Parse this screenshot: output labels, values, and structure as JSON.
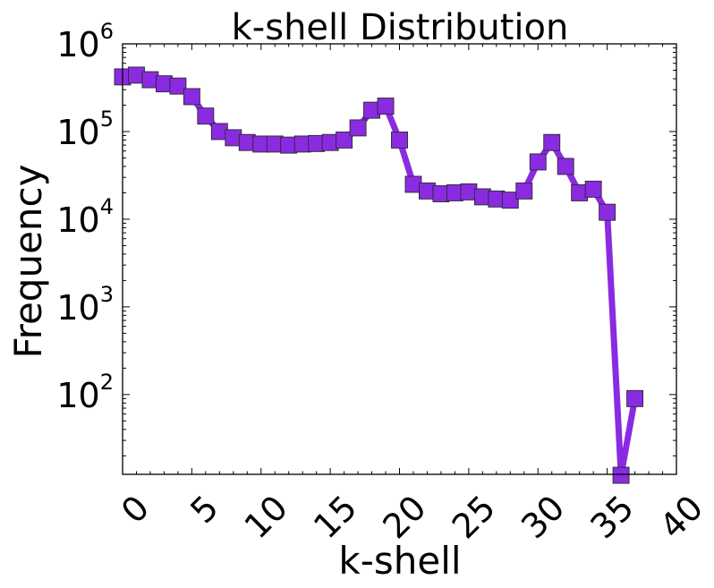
{
  "chart_data": {
    "type": "line",
    "title": "k-shell Distribution",
    "xlabel": "k-shell",
    "ylabel": "Frequency",
    "xlim": [
      0,
      40
    ],
    "ylim_log10": [
      1.09,
      6
    ],
    "yscale": "log",
    "x_ticks": [
      "0",
      "5",
      "10",
      "15",
      "20",
      "25",
      "30",
      "35",
      "40"
    ],
    "y_ticks": [
      {
        "base": "10",
        "exp": "2",
        "value": 100
      },
      {
        "base": "10",
        "exp": "3",
        "value": 1000
      },
      {
        "base": "10",
        "exp": "4",
        "value": 10000
      },
      {
        "base": "10",
        "exp": "5",
        "value": 100000
      },
      {
        "base": "10",
        "exp": "6",
        "value": 1000000
      }
    ],
    "grid": false,
    "color": "#8a2be2",
    "marker": "square",
    "series": [
      {
        "x": [
          0,
          1,
          2,
          3,
          4,
          5,
          6,
          7,
          8,
          9,
          10,
          11,
          12,
          13,
          14,
          15,
          16,
          17,
          18,
          19,
          20,
          21,
          22,
          23,
          24,
          25,
          26,
          27,
          28,
          29,
          30,
          31,
          32,
          33,
          34,
          35,
          36,
          37
        ],
        "values": [
          420000,
          440000,
          390000,
          350000,
          330000,
          250000,
          150000,
          100000,
          85000,
          75000,
          72000,
          72000,
          70000,
          72000,
          73000,
          75000,
          80000,
          110000,
          175000,
          195000,
          80000,
          25000,
          21000,
          19500,
          20000,
          20500,
          18000,
          17000,
          16500,
          21000,
          45000,
          75000,
          40000,
          20000,
          22000,
          12000,
          12,
          90
        ]
      }
    ]
  }
}
